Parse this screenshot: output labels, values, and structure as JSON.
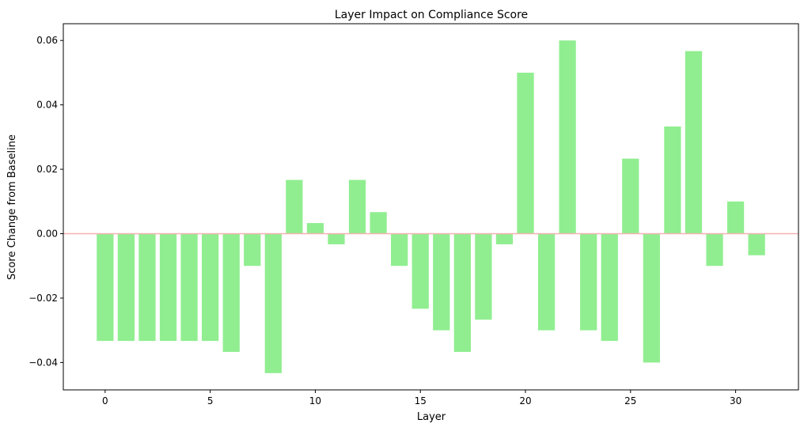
{
  "chart_data": {
    "type": "bar",
    "title": "Layer Impact on Compliance Score",
    "xlabel": "Layer",
    "ylabel": "Score Change from Baseline",
    "categories": [
      0,
      1,
      2,
      3,
      4,
      5,
      6,
      7,
      8,
      9,
      10,
      11,
      12,
      13,
      14,
      15,
      16,
      17,
      18,
      19,
      20,
      21,
      22,
      23,
      24,
      25,
      26,
      27,
      28,
      29,
      30,
      31
    ],
    "values": [
      -0.0333,
      -0.0333,
      -0.0333,
      -0.0333,
      -0.0333,
      -0.0333,
      -0.0367,
      -0.01,
      -0.0433,
      0.0167,
      0.0033,
      -0.0033,
      0.0167,
      0.0067,
      -0.01,
      -0.0233,
      -0.03,
      -0.0367,
      -0.0267,
      -0.0033,
      0.05,
      -0.03,
      0.06,
      -0.03,
      -0.0333,
      0.0233,
      -0.04,
      0.0333,
      0.0567,
      -0.01,
      0.01,
      -0.0067
    ],
    "xlim": [
      -1.99,
      32.99
    ],
    "ylim": [
      -0.0485,
      0.0652
    ],
    "xticks": [
      0,
      5,
      10,
      15,
      20,
      25,
      30
    ],
    "xtick_labels": [
      "0",
      "5",
      "10",
      "15",
      "20",
      "25",
      "30"
    ],
    "yticks": [
      -0.04,
      -0.02,
      0.0,
      0.02,
      0.04,
      0.06
    ],
    "ytick_labels": [
      "−0.04",
      "−0.02",
      "0.00",
      "0.02",
      "0.04",
      "0.06"
    ],
    "baseline": 0,
    "grid": false,
    "colors": {
      "bar": "#90ee90",
      "baseline": "#f4b2b2"
    }
  }
}
